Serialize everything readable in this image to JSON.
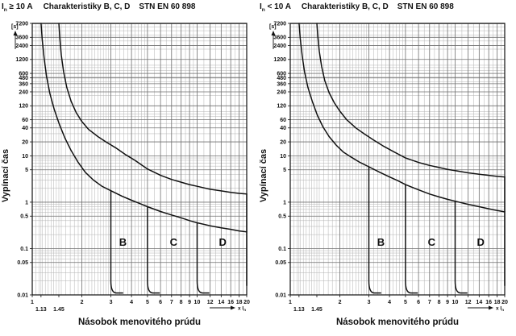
{
  "colors": {
    "background": "#ffffff",
    "curve": "#111111",
    "grid_minor": "#b3b3b3",
    "grid_major": "#6f6f6f",
    "axis": "#111111",
    "text": "#111111"
  },
  "chart_data": [
    {
      "type": "line",
      "title": {
        "symbol": "I",
        "subscript": "n",
        "condition": "≥ 10 A",
        "series_label": "Charakteristiky B, C, D",
        "standard": "STN EN 60 898"
      },
      "xlabel": "Násobok menovitého prúdu",
      "ylabel": "Vypínací čas",
      "y_unit": "[s]",
      "x_unit": {
        "prefix": "x I",
        "subscript": "n"
      },
      "x_scale": "log",
      "y_scale": "log",
      "xlim": [
        1,
        20
      ],
      "ylim": [
        0.01,
        7200
      ],
      "x_ticks_major": [
        "1",
        "2",
        "3",
        "4",
        "5",
        "6",
        "7",
        "8",
        "9",
        "10",
        "12",
        "14",
        "16",
        "18",
        "20"
      ],
      "x_ticks_sub": [
        "1.13",
        "1.45"
      ],
      "y_tick_labels": [
        "7200",
        "3600",
        "2400",
        "1200",
        "600",
        "480",
        "360",
        "240",
        "120",
        "60",
        "40",
        "20",
        "10",
        "5",
        "1",
        "0.5",
        "0.1",
        "0.05",
        "0.01"
      ],
      "series": [
        {
          "name": "upper-limit",
          "points": [
            [
              1.45,
              7200
            ],
            [
              1.47,
              3500
            ],
            [
              1.5,
              1500
            ],
            [
              1.55,
              650
            ],
            [
              1.62,
              300
            ],
            [
              1.72,
              150
            ],
            [
              1.85,
              85
            ],
            [
              2.0,
              55
            ],
            [
              2.2,
              37
            ],
            [
              2.5,
              26
            ],
            [
              2.8,
              20
            ],
            [
              3.2,
              15
            ],
            [
              3.7,
              10.5
            ],
            [
              4.2,
              8
            ],
            [
              5,
              5.2
            ],
            [
              6,
              3.8
            ],
            [
              7,
              3.1
            ],
            [
              8,
              2.7
            ],
            [
              9,
              2.4
            ],
            [
              10,
              2.2
            ],
            [
              12,
              1.9
            ],
            [
              14,
              1.75
            ],
            [
              16,
              1.63
            ],
            [
              18,
              1.55
            ],
            [
              20,
              1.5
            ]
          ]
        },
        {
          "name": "lower-limit",
          "points": [
            [
              1.13,
              7200
            ],
            [
              1.15,
              3200
            ],
            [
              1.18,
              1300
            ],
            [
              1.22,
              520
            ],
            [
              1.28,
              220
            ],
            [
              1.36,
              100
            ],
            [
              1.46,
              48
            ],
            [
              1.58,
              24
            ],
            [
              1.72,
              13
            ],
            [
              1.9,
              7.2
            ],
            [
              2.1,
              4.4
            ],
            [
              2.35,
              3.0
            ],
            [
              2.65,
              2.2
            ],
            [
              3.0,
              1.77
            ],
            [
              3.5,
              1.35
            ],
            [
              4,
              1.1
            ],
            [
              4.5,
              0.93
            ],
            [
              5,
              0.8
            ],
            [
              6,
              0.63
            ],
            [
              7,
              0.53
            ],
            [
              8,
              0.46
            ],
            [
              9,
              0.4
            ],
            [
              10,
              0.36
            ],
            [
              12,
              0.31
            ],
            [
              14,
              0.28
            ],
            [
              16,
              0.26
            ],
            [
              18,
              0.24
            ],
            [
              20,
              0.23
            ]
          ]
        }
      ],
      "instant_trip_lines": [
        {
          "x": 3,
          "from": 1.77,
          "hook": true
        },
        {
          "x": 5,
          "from": 0.8,
          "hook": true
        },
        {
          "x": 10,
          "from": 0.36,
          "hook": true
        },
        {
          "x": 20,
          "from": 1.5,
          "hook": false
        }
      ],
      "region_labels": [
        {
          "label": "B",
          "x": 3.55,
          "t": 0.115
        },
        {
          "label": "C",
          "x": 7.2,
          "t": 0.115
        },
        {
          "label": "D",
          "x": 14.3,
          "t": 0.115
        }
      ]
    },
    {
      "type": "line",
      "title": {
        "symbol": "I",
        "subscript": "n",
        "condition": "< 10 A",
        "series_label": "Charakteristiky B, C, D",
        "standard": "STN EN 60 898"
      },
      "xlabel": "Násobok menovitého prúdu",
      "ylabel": "Vypínací čas",
      "y_unit": "[s]",
      "x_unit": {
        "prefix": "x I",
        "subscript": "n"
      },
      "x_scale": "log",
      "y_scale": "log",
      "xlim": [
        1,
        20
      ],
      "ylim": [
        0.01,
        7200
      ],
      "x_ticks_major": [
        "1",
        "2",
        "3",
        "4",
        "5",
        "6",
        "7",
        "8",
        "9",
        "10",
        "12",
        "14",
        "16",
        "18",
        "20"
      ],
      "x_ticks_sub": [
        "1.13",
        "1.45"
      ],
      "y_tick_labels": [
        "7200",
        "3600",
        "2400",
        "1200",
        "600",
        "480",
        "360",
        "240",
        "120",
        "60",
        "40",
        "20",
        "10",
        "5",
        "1",
        "0.5",
        "0.1",
        "0.05",
        "0.01"
      ],
      "series": [
        {
          "name": "upper-limit",
          "points": [
            [
              1.45,
              7200
            ],
            [
              1.47,
              3800
            ],
            [
              1.5,
              1800
            ],
            [
              1.55,
              850
            ],
            [
              1.62,
              420
            ],
            [
              1.72,
              230
            ],
            [
              1.85,
              140
            ],
            [
              2.0,
              92
            ],
            [
              2.2,
              60
            ],
            [
              2.5,
              40
            ],
            [
              2.8,
              30
            ],
            [
              3.2,
              22
            ],
            [
              3.7,
              16
            ],
            [
              4.2,
              12.5
            ],
            [
              5,
              9.0
            ],
            [
              6,
              7.2
            ],
            [
              7,
              6.2
            ],
            [
              8,
              5.6
            ],
            [
              9,
              5.1
            ],
            [
              10,
              4.8
            ],
            [
              12,
              4.3
            ],
            [
              14,
              4.0
            ],
            [
              16,
              3.8
            ],
            [
              18,
              3.6
            ],
            [
              20,
              3.5
            ]
          ]
        },
        {
          "name": "lower-limit",
          "points": [
            [
              1.13,
              7200
            ],
            [
              1.15,
              3400
            ],
            [
              1.18,
              1500
            ],
            [
              1.22,
              650
            ],
            [
              1.28,
              300
            ],
            [
              1.36,
              150
            ],
            [
              1.46,
              75
            ],
            [
              1.58,
              42
            ],
            [
              1.72,
              26
            ],
            [
              1.9,
              17
            ],
            [
              2.1,
              12
            ],
            [
              2.35,
              9.3
            ],
            [
              2.65,
              7.2
            ],
            [
              3.0,
              5.8
            ],
            [
              3.5,
              4.4
            ],
            [
              4,
              3.5
            ],
            [
              4.5,
              2.9
            ],
            [
              5,
              2.4
            ],
            [
              6,
              1.85
            ],
            [
              7,
              1.5
            ],
            [
              8,
              1.3
            ],
            [
              9,
              1.15
            ],
            [
              10,
              1.05
            ],
            [
              12,
              0.9
            ],
            [
              14,
              0.8
            ],
            [
              16,
              0.72
            ],
            [
              18,
              0.66
            ],
            [
              20,
              0.62
            ]
          ]
        }
      ],
      "instant_trip_lines": [
        {
          "x": 3,
          "from": 5.8,
          "hook": true
        },
        {
          "x": 5,
          "from": 2.4,
          "hook": true
        },
        {
          "x": 10,
          "from": 1.05,
          "hook": true
        },
        {
          "x": 20,
          "from": 3.5,
          "hook": false
        }
      ],
      "region_labels": [
        {
          "label": "B",
          "x": 3.55,
          "t": 0.115
        },
        {
          "label": "C",
          "x": 7.2,
          "t": 0.115
        },
        {
          "label": "D",
          "x": 14.3,
          "t": 0.115
        }
      ]
    }
  ]
}
